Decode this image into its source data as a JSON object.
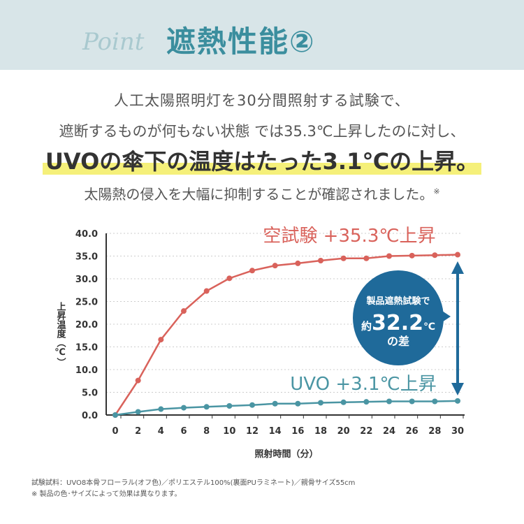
{
  "header": {
    "script": "Point",
    "title": "遮熱性能②"
  },
  "body": {
    "line1": "人工太陽照明灯を30分間照射する試験で、",
    "line2": "遮断するものが何もない状態 では35.3℃上昇したのに対し、",
    "line3": "UVOの傘下の温度はたった3.1℃の上昇。",
    "line4": "太陽熱の侵入を大幅に抑制することが確認されました。",
    "line4_mark": "※"
  },
  "chart_data": {
    "type": "line",
    "xlabel": "照射時間（分）",
    "ylabel": "上昇温度（℃）",
    "x": [
      0,
      2,
      4,
      6,
      8,
      10,
      12,
      14,
      16,
      18,
      20,
      22,
      24,
      26,
      28,
      30
    ],
    "xticks": [
      "0",
      "2",
      "4",
      "6",
      "8",
      "10",
      "12",
      "14",
      "16",
      "18",
      "20",
      "22",
      "24",
      "26",
      "28",
      "30"
    ],
    "yticks": [
      "0.0",
      "5.0",
      "10.0",
      "15.0",
      "20.0",
      "25.0",
      "30.0",
      "35.0",
      "40.0"
    ],
    "xlim": [
      0,
      30
    ],
    "ylim": [
      0,
      40
    ],
    "grid": "horizontal dotted",
    "series": [
      {
        "name": "空試験 +35.3℃上昇",
        "color": "#d9625b",
        "values": [
          0,
          7.6,
          16.6,
          22.9,
          27.3,
          30.1,
          31.8,
          32.9,
          33.4,
          34.0,
          34.5,
          34.5,
          35.0,
          35.1,
          35.2,
          35.3
        ]
      },
      {
        "name": "UVO +3.1℃上昇",
        "color": "#4a95a3",
        "values": [
          0,
          0.7,
          1.3,
          1.6,
          1.8,
          2.0,
          2.2,
          2.5,
          2.5,
          2.7,
          2.8,
          2.9,
          3.0,
          3.0,
          3.0,
          3.1
        ]
      }
    ],
    "annotation": {
      "line1": "製品遮熱試験で",
      "prefix": "約",
      "value": "32.2",
      "unit": "℃",
      "suffix": "の差",
      "color": "#1f6a9a"
    }
  },
  "footnotes": [
    "試験試料：UVO8本骨フローラル(オフ色)／ポリエステル100%(裏面PUラミネート)／親骨サイズ55cm",
    "※ 製品の色･サイズによって効果は異なります。"
  ]
}
